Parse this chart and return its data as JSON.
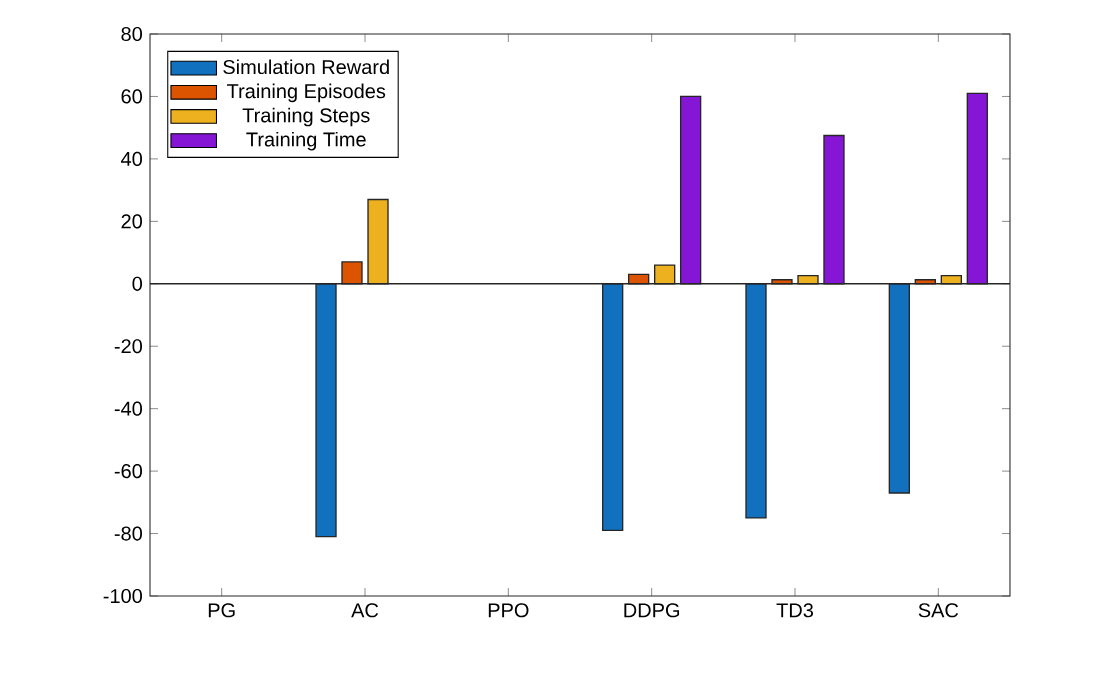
{
  "chart_data": {
    "type": "bar",
    "categories": [
      "PG",
      "AC",
      "PPO",
      "DDPG",
      "TD3",
      "SAC"
    ],
    "series": [
      {
        "name": "Simulation Reward",
        "color": "#1171be",
        "values": [
          null,
          -81,
          null,
          -79,
          -75,
          -67
        ]
      },
      {
        "name": "Training Episodes",
        "color": "#dd5400",
        "values": [
          null,
          7,
          null,
          3,
          1.3,
          1.3
        ]
      },
      {
        "name": "Training Steps",
        "color": "#edb120",
        "values": [
          null,
          27,
          null,
          6,
          2.6,
          2.6
        ]
      },
      {
        "name": "Training Time",
        "color": "#8516d5",
        "values": [
          null,
          null,
          null,
          60,
          47.5,
          61
        ]
      }
    ],
    "ylim": [
      -100,
      80
    ],
    "yticks": [
      -100,
      -80,
      -60,
      -40,
      -20,
      0,
      20,
      40,
      60,
      80
    ],
    "ref_lines": [
      {
        "axis": "y",
        "value": 0
      }
    ],
    "legend": "top left",
    "grid": false
  }
}
